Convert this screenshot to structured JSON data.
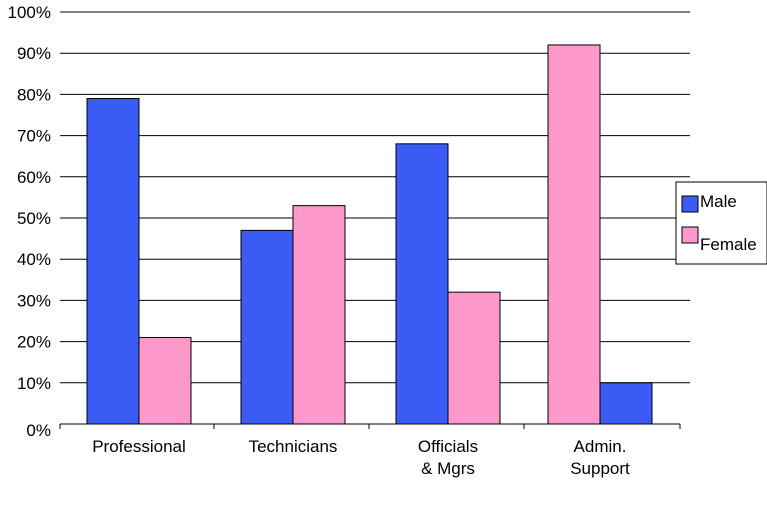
{
  "chart_data": {
    "type": "bar",
    "categories": [
      [
        "Professional"
      ],
      [
        "Technicians"
      ],
      [
        "Officials",
        "& Mgrs"
      ],
      [
        "Admin.",
        "Support"
      ]
    ],
    "series": [
      {
        "name": "Male",
        "color": "#3a5cf5",
        "values": [
          79,
          47,
          68,
          10
        ]
      },
      {
        "name": "Female",
        "color": "#ff99cc",
        "values": [
          21,
          53,
          32,
          92
        ]
      }
    ],
    "bar_order": [
      [
        "Male",
        "Female"
      ],
      [
        "Male",
        "Female"
      ],
      [
        "Male",
        "Female"
      ],
      [
        "Female",
        "Male"
      ]
    ],
    "ylim": [
      0,
      100
    ],
    "yticks": [
      "0%",
      "10%",
      "20%",
      "30%",
      "40%",
      "50%",
      "60%",
      "70%",
      "80%",
      "90%",
      "100%"
    ],
    "grid": true,
    "legend_position": "right"
  }
}
